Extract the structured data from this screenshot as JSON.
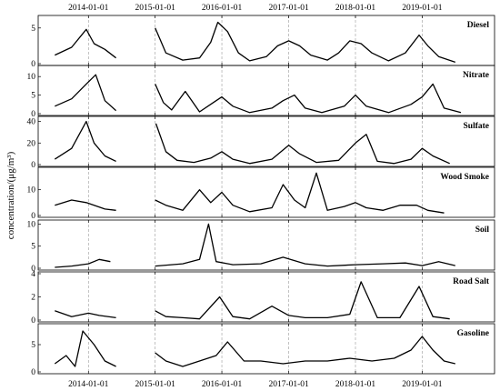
{
  "chart_data": {
    "type": "line",
    "ylabel": "concentration/(μg/m³)",
    "x_range": [
      "2013-04-01",
      "2020-02-01"
    ],
    "x_ticks": [
      "2014-01-01",
      "2015-01-01",
      "2016-01-01",
      "2017-01-01",
      "2018-01-01",
      "2019-01-01"
    ],
    "x_ticks_position": "top-and-bottom",
    "vertical_gridlines": "dashed at x ticks",
    "data_gaps": [
      [
        "2014-06-01",
        "2014-12-31"
      ]
    ],
    "panels": [
      {
        "name": "Diesel",
        "ylim": [
          0,
          6.5
        ],
        "yticks": [
          0,
          5
        ],
        "points": [
          [
            "2013-07-01",
            1.2
          ],
          [
            "2013-10-01",
            2.3
          ],
          [
            "2013-12-20",
            4.8
          ],
          [
            "2014-02-01",
            2.8
          ],
          [
            "2014-04-01",
            2.0
          ],
          [
            "2014-06-01",
            0.8
          ],
          [
            "2015-01-01",
            5.0
          ],
          [
            "2015-03-01",
            1.5
          ],
          [
            "2015-06-01",
            0.5
          ],
          [
            "2015-09-01",
            0.8
          ],
          [
            "2015-11-01",
            3.0
          ],
          [
            "2015-12-10",
            5.8
          ],
          [
            "2016-02-01",
            4.5
          ],
          [
            "2016-04-01",
            1.5
          ],
          [
            "2016-06-01",
            0.4
          ],
          [
            "2016-09-01",
            1.0
          ],
          [
            "2016-11-01",
            2.5
          ],
          [
            "2017-01-01",
            3.2
          ],
          [
            "2017-03-01",
            2.5
          ],
          [
            "2017-05-01",
            1.2
          ],
          [
            "2017-08-01",
            0.5
          ],
          [
            "2017-10-01",
            1.5
          ],
          [
            "2017-12-01",
            3.2
          ],
          [
            "2018-02-01",
            2.8
          ],
          [
            "2018-04-01",
            1.5
          ],
          [
            "2018-07-01",
            0.4
          ],
          [
            "2018-10-01",
            1.5
          ],
          [
            "2018-12-15",
            4.0
          ],
          [
            "2019-02-01",
            2.5
          ],
          [
            "2019-04-01",
            1.0
          ],
          [
            "2019-07-01",
            0.2
          ]
        ]
      },
      {
        "name": "Nitrate",
        "ylim": [
          0,
          12.5
        ],
        "yticks": [
          0,
          5,
          10
        ],
        "points": [
          [
            "2013-07-01",
            2.0
          ],
          [
            "2013-10-01",
            4.0
          ],
          [
            "2013-12-20",
            8.0
          ],
          [
            "2014-02-10",
            10.5
          ],
          [
            "2014-04-01",
            3.5
          ],
          [
            "2014-06-01",
            0.8
          ],
          [
            "2015-01-01",
            8.0
          ],
          [
            "2015-02-15",
            3.0
          ],
          [
            "2015-04-01",
            1.0
          ],
          [
            "2015-06-15",
            6.0
          ],
          [
            "2015-09-01",
            0.5
          ],
          [
            "2015-11-15",
            3.0
          ],
          [
            "2016-01-01",
            4.5
          ],
          [
            "2016-03-01",
            2.0
          ],
          [
            "2016-06-01",
            0.3
          ],
          [
            "2016-10-01",
            1.5
          ],
          [
            "2016-12-01",
            3.5
          ],
          [
            "2017-02-01",
            5.0
          ],
          [
            "2017-04-01",
            1.5
          ],
          [
            "2017-07-01",
            0.3
          ],
          [
            "2017-11-01",
            2.0
          ],
          [
            "2018-01-01",
            5.0
          ],
          [
            "2018-03-01",
            2.0
          ],
          [
            "2018-07-01",
            0.3
          ],
          [
            "2018-11-01",
            2.5
          ],
          [
            "2019-01-01",
            4.5
          ],
          [
            "2019-03-01",
            8.0
          ],
          [
            "2019-05-01",
            1.5
          ],
          [
            "2019-08-01",
            0.3
          ]
        ]
      },
      {
        "name": "Sulfate",
        "ylim": [
          0,
          43
        ],
        "yticks": [
          0,
          20,
          40
        ],
        "points": [
          [
            "2013-07-01",
            5.0
          ],
          [
            "2013-10-01",
            15.0
          ],
          [
            "2013-12-20",
            40.0
          ],
          [
            "2014-02-01",
            20.0
          ],
          [
            "2014-04-01",
            8.0
          ],
          [
            "2014-06-01",
            3.0
          ],
          [
            "2015-01-05",
            38.0
          ],
          [
            "2015-03-01",
            12.0
          ],
          [
            "2015-05-01",
            4.0
          ],
          [
            "2015-08-01",
            2.0
          ],
          [
            "2015-11-01",
            6.0
          ],
          [
            "2016-01-01",
            12.0
          ],
          [
            "2016-03-01",
            5.0
          ],
          [
            "2016-06-01",
            1.0
          ],
          [
            "2016-10-01",
            5.0
          ],
          [
            "2017-01-01",
            18.0
          ],
          [
            "2017-03-01",
            10.0
          ],
          [
            "2017-06-01",
            2.0
          ],
          [
            "2017-10-01",
            4.0
          ],
          [
            "2018-01-01",
            20.0
          ],
          [
            "2018-03-01",
            28.0
          ],
          [
            "2018-05-01",
            3.0
          ],
          [
            "2018-08-01",
            1.0
          ],
          [
            "2018-11-01",
            5.0
          ],
          [
            "2019-01-01",
            15.0
          ],
          [
            "2019-03-01",
            8.0
          ],
          [
            "2019-06-01",
            1.0
          ]
        ]
      },
      {
        "name": "Wood Smoke",
        "ylim": [
          0,
          18
        ],
        "yticks": [
          0,
          10
        ],
        "points": [
          [
            "2013-07-01",
            4.0
          ],
          [
            "2013-10-01",
            6.0
          ],
          [
            "2013-12-20",
            5.0
          ],
          [
            "2014-02-01",
            4.0
          ],
          [
            "2014-04-01",
            2.5
          ],
          [
            "2014-06-01",
            2.0
          ],
          [
            "2015-01-01",
            6.0
          ],
          [
            "2015-03-01",
            4.0
          ],
          [
            "2015-06-01",
            2.0
          ],
          [
            "2015-09-01",
            10.0
          ],
          [
            "2015-11-01",
            5.0
          ],
          [
            "2016-01-01",
            9.0
          ],
          [
            "2016-03-01",
            4.0
          ],
          [
            "2016-06-01",
            1.5
          ],
          [
            "2016-10-01",
            3.0
          ],
          [
            "2016-12-01",
            12.0
          ],
          [
            "2017-02-01",
            6.0
          ],
          [
            "2017-04-01",
            3.0
          ],
          [
            "2017-06-01",
            16.5
          ],
          [
            "2017-08-01",
            2.0
          ],
          [
            "2017-11-01",
            3.5
          ],
          [
            "2018-01-01",
            5.0
          ],
          [
            "2018-03-01",
            3.0
          ],
          [
            "2018-06-01",
            2.0
          ],
          [
            "2018-09-01",
            4.0
          ],
          [
            "2018-12-01",
            4.0
          ],
          [
            "2019-02-01",
            2.0
          ],
          [
            "2019-05-01",
            1.0
          ]
        ]
      },
      {
        "name": "Soil",
        "ylim": [
          0,
          10.5
        ],
        "yticks": [
          0,
          5,
          10
        ],
        "points": [
          [
            "2013-07-01",
            0.2
          ],
          [
            "2013-10-01",
            0.5
          ],
          [
            "2014-01-01",
            1.0
          ],
          [
            "2014-03-01",
            2.0
          ],
          [
            "2014-05-01",
            1.5
          ],
          [
            "2015-01-01",
            0.5
          ],
          [
            "2015-06-01",
            1.0
          ],
          [
            "2015-09-01",
            2.0
          ],
          [
            "2015-10-20",
            10.0
          ],
          [
            "2015-12-01",
            1.5
          ],
          [
            "2016-03-01",
            0.8
          ],
          [
            "2016-08-01",
            1.0
          ],
          [
            "2016-12-01",
            2.5
          ],
          [
            "2017-04-01",
            1.0
          ],
          [
            "2017-08-01",
            0.5
          ],
          [
            "2018-01-01",
            0.8
          ],
          [
            "2018-06-01",
            1.0
          ],
          [
            "2018-10-01",
            1.2
          ],
          [
            "2019-01-01",
            0.6
          ],
          [
            "2019-04-01",
            1.5
          ],
          [
            "2019-07-01",
            0.6
          ]
        ]
      },
      {
        "name": "Road Salt",
        "ylim": [
          0,
          4
        ],
        "yticks": [
          0,
          2,
          4
        ],
        "points": [
          [
            "2013-07-01",
            0.8
          ],
          [
            "2013-10-01",
            0.3
          ],
          [
            "2014-01-01",
            0.6
          ],
          [
            "2014-03-01",
            0.4
          ],
          [
            "2014-06-01",
            0.2
          ],
          [
            "2015-01-01",
            0.8
          ],
          [
            "2015-03-01",
            0.3
          ],
          [
            "2015-06-01",
            0.2
          ],
          [
            "2015-09-01",
            0.1
          ],
          [
            "2015-12-20",
            2.0
          ],
          [
            "2016-03-01",
            0.3
          ],
          [
            "2016-06-01",
            0.1
          ],
          [
            "2016-10-01",
            1.2
          ],
          [
            "2017-01-01",
            0.4
          ],
          [
            "2017-04-01",
            0.2
          ],
          [
            "2017-08-01",
            0.2
          ],
          [
            "2017-12-01",
            0.5
          ],
          [
            "2018-02-01",
            3.3
          ],
          [
            "2018-05-01",
            0.2
          ],
          [
            "2018-09-01",
            0.2
          ],
          [
            "2018-12-15",
            2.9
          ],
          [
            "2019-03-01",
            0.3
          ],
          [
            "2019-06-01",
            0.1
          ]
        ]
      },
      {
        "name": "Gasoline",
        "ylim": [
          0,
          8.5
        ],
        "yticks": [
          0,
          5
        ],
        "points": [
          [
            "2013-07-01",
            1.5
          ],
          [
            "2013-09-01",
            3.0
          ],
          [
            "2013-10-20",
            1.0
          ],
          [
            "2013-12-01",
            7.5
          ],
          [
            "2014-02-01",
            5.0
          ],
          [
            "2014-04-01",
            2.0
          ],
          [
            "2014-06-01",
            1.0
          ],
          [
            "2015-01-01",
            3.5
          ],
          [
            "2015-03-01",
            2.0
          ],
          [
            "2015-06-01",
            1.0
          ],
          [
            "2015-09-01",
            2.0
          ],
          [
            "2015-12-01",
            3.0
          ],
          [
            "2016-02-01",
            5.5
          ],
          [
            "2016-05-01",
            2.0
          ],
          [
            "2016-08-01",
            2.0
          ],
          [
            "2016-12-01",
            1.5
          ],
          [
            "2017-04-01",
            2.0
          ],
          [
            "2017-08-01",
            2.0
          ],
          [
            "2017-12-01",
            2.5
          ],
          [
            "2018-04-01",
            2.0
          ],
          [
            "2018-08-01",
            2.5
          ],
          [
            "2018-11-01",
            4.0
          ],
          [
            "2019-01-01",
            6.5
          ],
          [
            "2019-03-01",
            4.0
          ],
          [
            "2019-05-01",
            2.0
          ],
          [
            "2019-07-01",
            1.5
          ]
        ]
      }
    ]
  }
}
